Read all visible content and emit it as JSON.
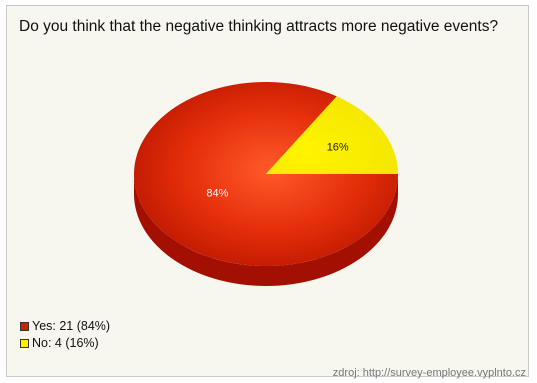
{
  "chart_data": {
    "type": "pie",
    "title": "Do you think that the negative thinking attracts more negative events?",
    "categories": [
      "Yes",
      "No"
    ],
    "values": [
      21,
      4
    ],
    "percentages": [
      84,
      16
    ],
    "slice_labels": [
      "84%",
      "16%"
    ],
    "legend_labels": [
      "Yes: 21 (84%)",
      "No: 4 (16%)"
    ],
    "colors": [
      "#cc2200",
      "#ffee00"
    ],
    "legend_position": "bottom-left"
  },
  "footer": {
    "source": "zdroj: http://survey-employee.vyplnto.cz"
  }
}
